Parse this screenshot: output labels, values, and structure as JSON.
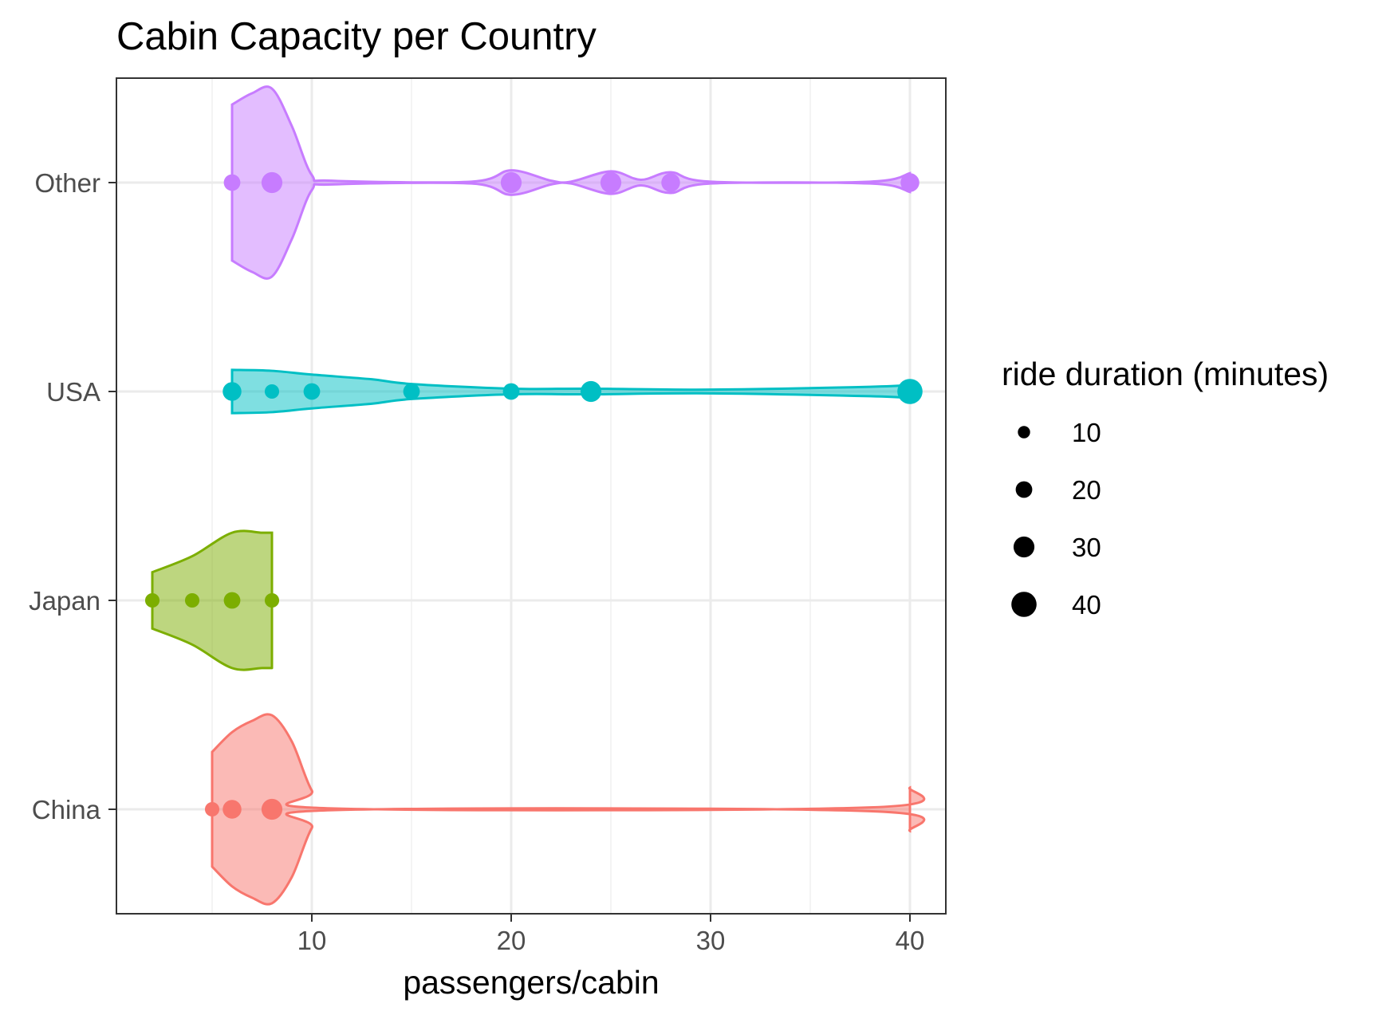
{
  "chart_data": {
    "type": "violin",
    "title": "Cabin Capacity per Country",
    "xlabel": "passengers/cabin",
    "ylabel": "",
    "xlim": [
      0.2,
      41.8
    ],
    "x_ticks": [
      10,
      20,
      30,
      40
    ],
    "x_tick_labels": [
      "10",
      "20",
      "30",
      "40"
    ],
    "categories": [
      "China",
      "Japan",
      "USA",
      "Other"
    ],
    "grid": true,
    "legend_position": "right",
    "legend": {
      "title": "ride duration (minutes)",
      "entries": [
        {
          "label": "10",
          "value": 10
        },
        {
          "label": "20",
          "value": 20
        },
        {
          "label": "30",
          "value": 30
        },
        {
          "label": "40",
          "value": 40
        }
      ]
    },
    "series": [
      {
        "category": "China",
        "color": "#F8766D",
        "violin": [
          [
            5,
            0.61
          ],
          [
            6,
            0.82
          ],
          [
            7,
            0.94
          ],
          [
            8,
            1.0
          ],
          [
            9,
            0.72
          ],
          [
            10,
            0.2
          ],
          [
            11,
            0.01
          ],
          [
            38,
            0.02
          ],
          [
            40,
            0.23
          ]
        ],
        "points": [
          {
            "x": 5,
            "duration": 15
          },
          {
            "x": 6,
            "duration": 25
          },
          {
            "x": 8,
            "duration": 30
          }
        ]
      },
      {
        "category": "Japan",
        "color": "#7CAE00",
        "violin": [
          [
            2,
            0.3
          ],
          [
            4,
            0.47
          ],
          [
            6,
            0.72
          ],
          [
            7.5,
            0.72
          ],
          [
            8,
            0.72
          ]
        ],
        "points": [
          {
            "x": 2,
            "duration": 15
          },
          {
            "x": 4,
            "duration": 15
          },
          {
            "x": 6,
            "duration": 20
          },
          {
            "x": 8,
            "duration": 15
          }
        ]
      },
      {
        "category": "USA",
        "color": "#00BFC4",
        "violin": [
          [
            6,
            0.23
          ],
          [
            8,
            0.22
          ],
          [
            10,
            0.18
          ],
          [
            13,
            0.13
          ],
          [
            15,
            0.08
          ],
          [
            20,
            0.03
          ],
          [
            24,
            0.03
          ],
          [
            30,
            0.02
          ],
          [
            38,
            0.05
          ],
          [
            40,
            0.07
          ]
        ],
        "points": [
          {
            "x": 6,
            "duration": 25
          },
          {
            "x": 8,
            "duration": 15
          },
          {
            "x": 10,
            "duration": 20
          },
          {
            "x": 15,
            "duration": 20
          },
          {
            "x": 20,
            "duration": 20
          },
          {
            "x": 24,
            "duration": 30
          },
          {
            "x": 40,
            "duration": 40
          }
        ]
      },
      {
        "category": "Other",
        "color": "#C77CFF",
        "violin": [
          [
            6,
            0.83
          ],
          [
            7,
            0.95
          ],
          [
            8,
            1.0
          ],
          [
            9,
            0.6
          ],
          [
            10,
            0.08
          ],
          [
            11,
            0.02
          ],
          [
            18,
            0.01
          ],
          [
            20,
            0.13
          ],
          [
            22,
            0.02
          ],
          [
            23,
            0.01
          ],
          [
            25,
            0.12
          ],
          [
            26.5,
            0.03
          ],
          [
            28,
            0.11
          ],
          [
            30,
            0.01
          ],
          [
            38,
            0.01
          ],
          [
            40,
            0.1
          ]
        ],
        "points": [
          {
            "x": 6,
            "duration": 20
          },
          {
            "x": 8,
            "duration": 30
          },
          {
            "x": 20,
            "duration": 30
          },
          {
            "x": 25,
            "duration": 30
          },
          {
            "x": 28,
            "duration": 25
          },
          {
            "x": 40,
            "duration": 25
          }
        ]
      }
    ]
  }
}
